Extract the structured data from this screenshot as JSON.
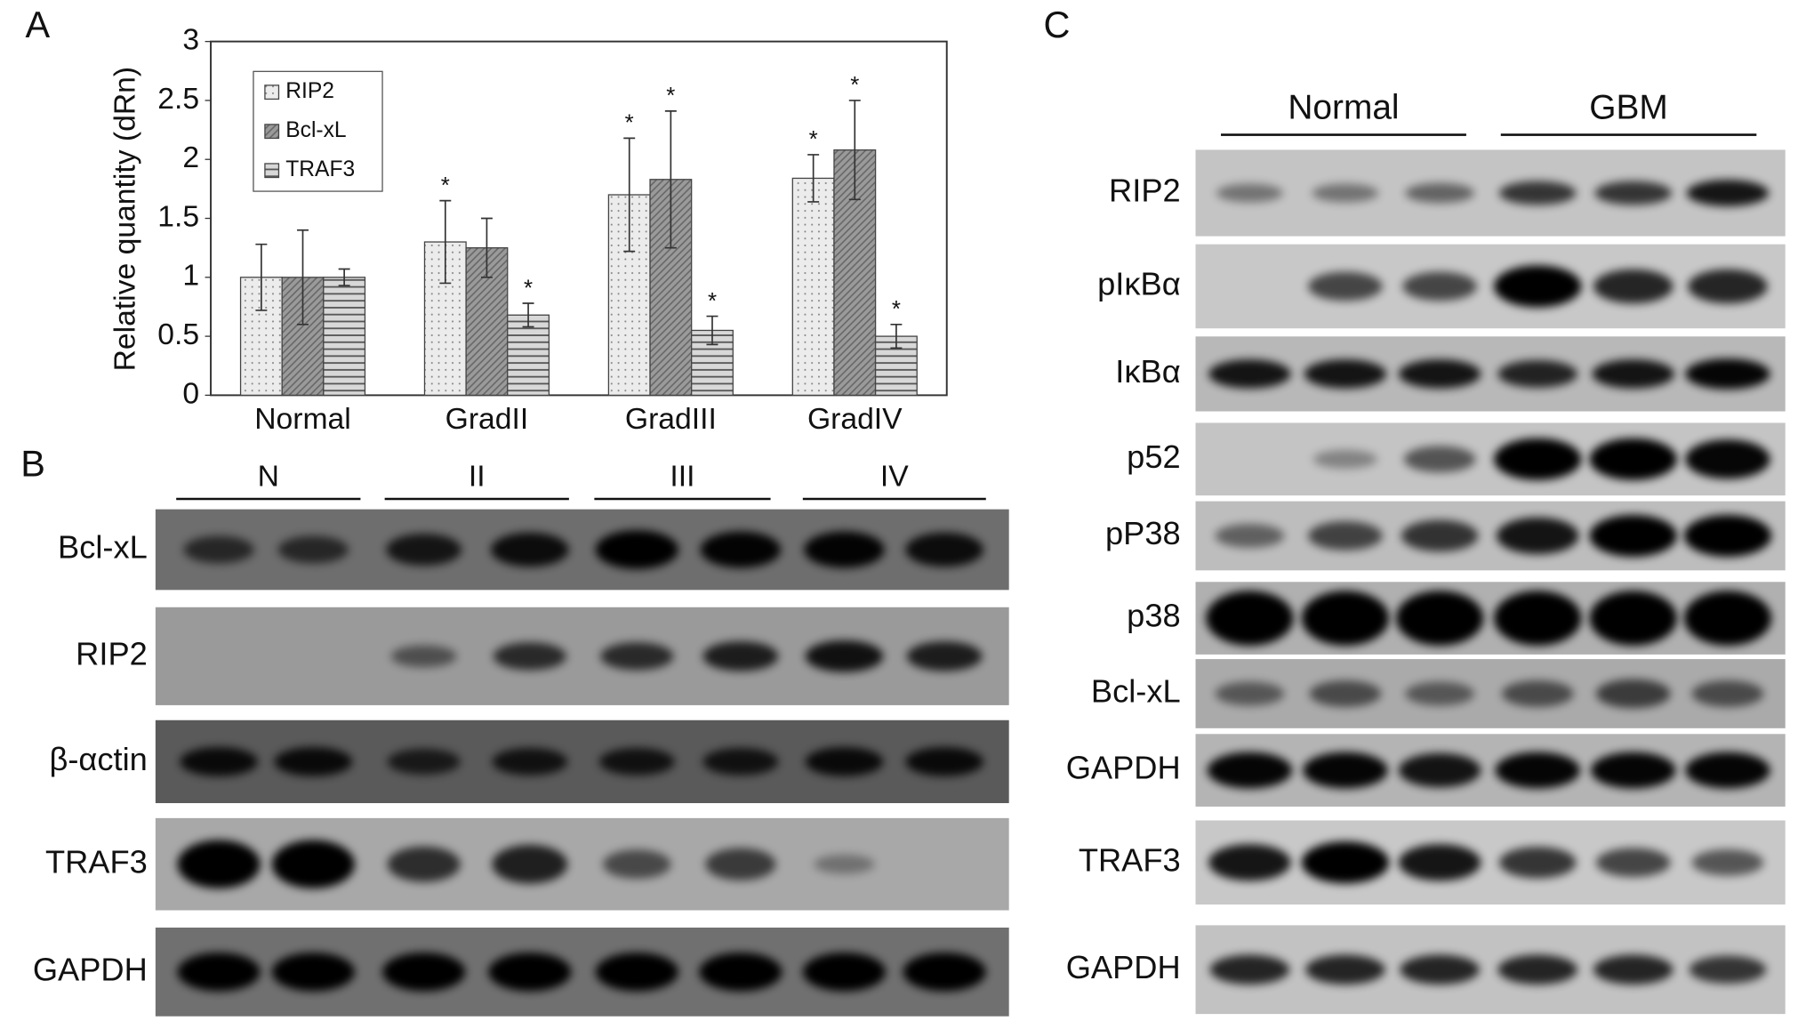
{
  "chart_data": {
    "type": "bar",
    "ylabel": "Relative quantity (dRn)",
    "categories": [
      "Normal",
      "GradII",
      "GradIII",
      "GradIV"
    ],
    "series": [
      {
        "name": "RIP2",
        "color": "#ececec",
        "pattern": "dots",
        "values": [
          1.0,
          1.3,
          1.7,
          1.84
        ],
        "errors": [
          0.28,
          0.35,
          0.48,
          0.2
        ],
        "significance": [
          null,
          "*",
          "*",
          "*"
        ]
      },
      {
        "name": "Bcl-xL",
        "color": "#9a9a9a",
        "pattern": "diagonal",
        "values": [
          1.0,
          1.25,
          1.83,
          2.08
        ],
        "errors": [
          0.4,
          0.25,
          0.58,
          0.42
        ],
        "significance": [
          null,
          null,
          "*",
          "*"
        ]
      },
      {
        "name": "TRAF3",
        "color": "#d8d8d8",
        "pattern": "horizontal",
        "values": [
          1.0,
          0.68,
          0.55,
          0.5
        ],
        "errors": [
          0.07,
          0.1,
          0.12,
          0.1
        ],
        "significance": [
          null,
          "*",
          "*",
          "*"
        ]
      }
    ],
    "ylim": [
      0,
      3
    ],
    "yticks": [
      0,
      0.5,
      1,
      1.5,
      2,
      2.5,
      3
    ],
    "legend": "upper-left"
  },
  "panel_labels": {
    "a": "A",
    "b": "B",
    "c": "C"
  },
  "panel_b": {
    "groups": [
      "N",
      "II",
      "III",
      "IV"
    ],
    "rows": [
      "Bcl-xL",
      "RIP2",
      "β-αctin",
      "TRAF3",
      "GAPDH"
    ]
  },
  "panel_c": {
    "groups": [
      "Normal",
      "GBM"
    ],
    "rows": [
      "RIP2",
      "pIκBα",
      "IκBα",
      "p52",
      "pP38",
      "p38",
      "Bcl-xL",
      "GAPDH",
      "TRAF3",
      "GAPDH"
    ]
  }
}
